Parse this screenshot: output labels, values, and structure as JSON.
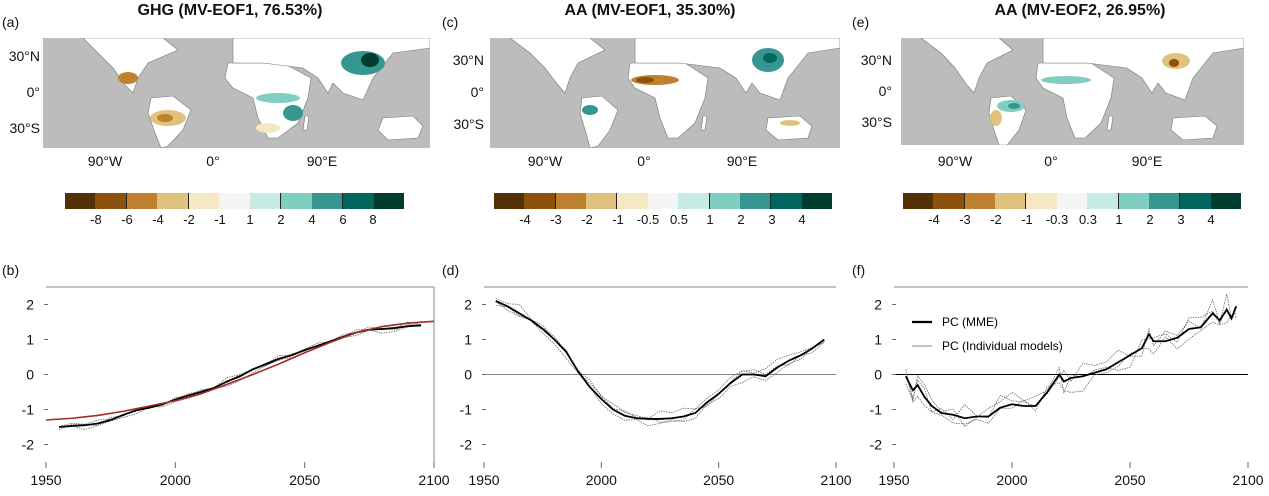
{
  "panels": {
    "a": {
      "label": "(a)",
      "title": "GHG (MV-EOF1, 76.53%)"
    },
    "b": {
      "label": "(b)"
    },
    "c": {
      "label": "(c)",
      "title": "AA (MV-EOF1, 35.30%)"
    },
    "d": {
      "label": "(d)"
    },
    "e": {
      "label": "(e)",
      "title": "AA (MV-EOF2, 26.95%)"
    },
    "f": {
      "label": "(f)"
    }
  },
  "map_axes": {
    "lat_labels": [
      "30°N",
      "0°",
      "30°S"
    ],
    "lon_labels": [
      "90°W",
      "0°",
      "90°E"
    ]
  },
  "colors": {
    "ocean": "#bcbcbc",
    "land": "#ffffff",
    "mme_line": "#000000",
    "individual_line": "#555555",
    "fit_line": "#a52a2a",
    "zero_line_b_d": "#888888",
    "zero_line_f": "#000000",
    "palette": [
      "#543005",
      "#8c510a",
      "#bf812d",
      "#dfc27d",
      "#f6e8c3",
      "#f5f5f5",
      "#c7eae5",
      "#80cdc1",
      "#35978f",
      "#01665e",
      "#003c30"
    ]
  },
  "colorbars": [
    {
      "panel": "a",
      "ticks": [
        "-8",
        "-6",
        "-4",
        "-2",
        "-1",
        "1",
        "2",
        "4",
        "6",
        "8"
      ]
    },
    {
      "panel": "c",
      "ticks": [
        "-4",
        "-3",
        "-2",
        "-1",
        "-0.5",
        "0.5",
        "1",
        "2",
        "3",
        "4"
      ]
    },
    {
      "panel": "e",
      "ticks": [
        "-4",
        "-3",
        "-2",
        "-1",
        "-0.3",
        "0.3",
        "1",
        "2",
        "3",
        "4"
      ]
    }
  ],
  "legend": {
    "mme": "PC (MME)",
    "individual": "PC (Individual models)"
  },
  "chart_data": [
    {
      "panel": "b",
      "type": "line",
      "title": "",
      "xlabel": "",
      "ylabel": "",
      "xlim": [
        1950,
        2100
      ],
      "ylim": [
        -2.5,
        2.5
      ],
      "xticks": [
        1950,
        2000,
        2050,
        2100
      ],
      "yticks": [
        2,
        1,
        0,
        -1,
        -2
      ],
      "series": [
        {
          "name": "PC (MME)",
          "x": [
            1955,
            1960,
            1965,
            1970,
            1975,
            1980,
            1985,
            1990,
            1995,
            2000,
            2005,
            2010,
            2015,
            2020,
            2025,
            2030,
            2035,
            2040,
            2045,
            2050,
            2055,
            2060,
            2065,
            2070,
            2075,
            2080,
            2085,
            2090,
            2095
          ],
          "values": [
            -1.5,
            -1.47,
            -1.45,
            -1.4,
            -1.3,
            -1.15,
            -1.02,
            -0.95,
            -0.85,
            -0.72,
            -0.6,
            -0.5,
            -0.38,
            -0.2,
            -0.05,
            0.15,
            0.3,
            0.45,
            0.55,
            0.7,
            0.82,
            0.95,
            1.08,
            1.2,
            1.28,
            1.3,
            1.33,
            1.38,
            1.4
          ]
        },
        {
          "name": "Fitted curve",
          "x": [
            1950,
            1960,
            1970,
            1980,
            1990,
            2000,
            2010,
            2020,
            2030,
            2040,
            2050,
            2060,
            2070,
            2080,
            2090,
            2100
          ],
          "values": [
            -1.3,
            -1.25,
            -1.17,
            -1.05,
            -0.9,
            -0.75,
            -0.55,
            -0.28,
            0.0,
            0.3,
            0.62,
            0.92,
            1.2,
            1.37,
            1.47,
            1.52
          ]
        }
      ],
      "zero_line": false
    },
    {
      "panel": "d",
      "type": "line",
      "xlim": [
        1950,
        2100
      ],
      "ylim": [
        -2.5,
        2.5
      ],
      "xticks": [
        1950,
        2000,
        2050,
        2100
      ],
      "yticks": [
        2,
        1,
        0,
        -1,
        -2
      ],
      "series": [
        {
          "name": "PC (MME)",
          "x": [
            1955,
            1960,
            1965,
            1970,
            1975,
            1980,
            1985,
            1990,
            1995,
            2000,
            2005,
            2010,
            2015,
            2020,
            2025,
            2030,
            2035,
            2040,
            2045,
            2050,
            2055,
            2060,
            2065,
            2070,
            2075,
            2080,
            2085,
            2090,
            2095
          ],
          "values": [
            2.1,
            1.95,
            1.75,
            1.55,
            1.3,
            1.0,
            0.65,
            0.1,
            -0.35,
            -0.7,
            -1.0,
            -1.18,
            -1.25,
            -1.27,
            -1.27,
            -1.25,
            -1.2,
            -1.1,
            -0.8,
            -0.55,
            -0.25,
            0.0,
            0.0,
            -0.05,
            0.2,
            0.4,
            0.55,
            0.75,
            1.0
          ]
        }
      ],
      "zero_line": true
    },
    {
      "panel": "f",
      "type": "line",
      "xlim": [
        1950,
        2100
      ],
      "ylim": [
        -2.5,
        2.5
      ],
      "xticks": [
        1950,
        2000,
        2050,
        2100
      ],
      "yticks": [
        2,
        1,
        0,
        -1,
        -2
      ],
      "legend_position": "top-left",
      "series": [
        {
          "name": "PC (MME)",
          "x": [
            1955,
            1958,
            1960,
            1963,
            1966,
            1970,
            1975,
            1980,
            1985,
            1990,
            1995,
            2000,
            2005,
            2010,
            2015,
            2020,
            2022,
            2025,
            2030,
            2035,
            2040,
            2045,
            2050,
            2055,
            2058,
            2060,
            2065,
            2070,
            2075,
            2080,
            2085,
            2088,
            2091,
            2093,
            2095
          ],
          "values": [
            -0.05,
            -0.45,
            -0.3,
            -0.65,
            -0.9,
            -1.1,
            -1.15,
            -1.25,
            -1.2,
            -1.2,
            -0.95,
            -0.85,
            -0.9,
            -0.9,
            -0.5,
            0.0,
            -0.2,
            -0.1,
            -0.05,
            0.05,
            0.15,
            0.35,
            0.55,
            0.75,
            1.15,
            0.95,
            0.95,
            1.05,
            1.3,
            1.35,
            1.75,
            1.55,
            1.85,
            1.6,
            1.95
          ]
        }
      ],
      "zero_line": true
    }
  ]
}
